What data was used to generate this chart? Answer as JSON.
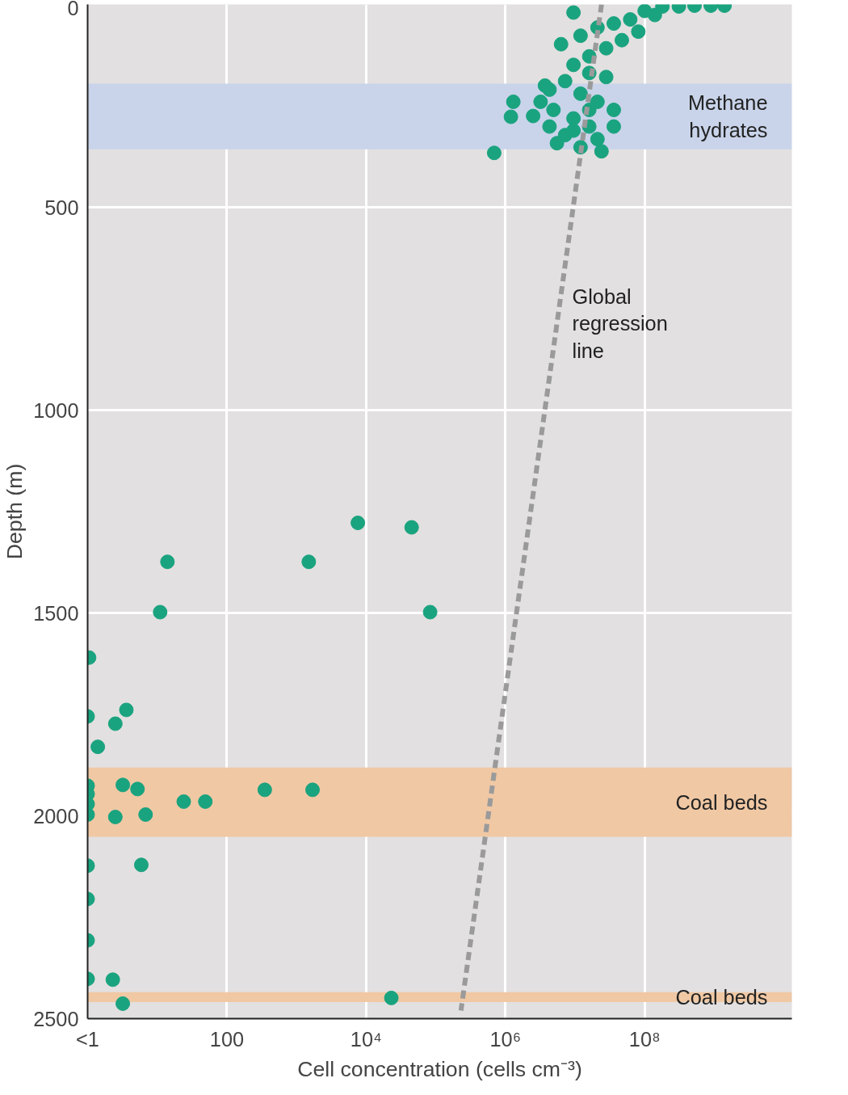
{
  "chart_data": {
    "type": "scatter",
    "xlabel": "Cell concentration (cells cm⁻³)",
    "ylabel": "Depth (m)",
    "log": "x",
    "grid": true,
    "xlim": [
      1,
      13000000000
    ],
    "ylim": [
      2500,
      0
    ],
    "xticks": [
      {
        "value": 1,
        "label": "<1"
      },
      100,
      {
        "value": 10000,
        "label": "10⁴"
      },
      {
        "value": 1000000,
        "label": "10⁶"
      },
      {
        "value": 100000000,
        "label": "10⁸"
      }
    ],
    "yticks": [
      0,
      500,
      1000,
      1500,
      2000,
      2500
    ],
    "series": [
      {
        "color": "#1aa37f",
        "marker": "circle",
        "x": [
          9500000,
          6300000,
          12000000,
          21000000,
          36000000,
          62000000,
          100000000,
          180000000,
          310000000,
          520000000,
          890000000,
          1400000000,
          140000000,
          81000000,
          47000000,
          28000000,
          16000000,
          9500000,
          16000000,
          28000000,
          7200000,
          4300000,
          3200000,
          12000000,
          21000000,
          36000000,
          9500000,
          16000000,
          4300000,
          7200000,
          21000000,
          36000000,
          24000000,
          5500000,
          9500000,
          3700000,
          16000000,
          1300000,
          1200000,
          2500000,
          690000,
          4900000,
          12000000
        ],
        "values": [
          20,
          98,
          77,
          57,
          47,
          37,
          16,
          5,
          5,
          3,
          3,
          3,
          26,
          67,
          88,
          108,
          128,
          149,
          169,
          179,
          189,
          210,
          240,
          220,
          240,
          260,
          281,
          301,
          301,
          322,
          332,
          301,
          362,
          342,
          311,
          200,
          260,
          240,
          277,
          275,
          366,
          260,
          352
        ]
      },
      {
        "color": "#1aa37f",
        "marker": "circle",
        "x": [
          1.05,
          1,
          2.5,
          3.6,
          1.4,
          1,
          1,
          1,
          1,
          3.2,
          5.2,
          2.5,
          6.8,
          24,
          49,
          350,
          1700,
          1,
          5.9,
          1,
          1,
          1,
          2.3,
          3.2,
          23000,
          14,
          11,
          1500,
          7600,
          45000,
          83000
        ],
        "values": [
          1610,
          1755,
          1773,
          1739,
          1830,
          1926,
          1946,
          1971,
          1997,
          1924,
          1934,
          2003,
          1997,
          1965,
          1965,
          1936,
          1936,
          2123,
          2121,
          2205,
          2307,
          2402,
          2404,
          2463,
          2449,
          1374,
          1498,
          1374,
          1278,
          1289,
          1498
        ]
      },
      {
        "type": "line",
        "color": "#9a9a9a",
        "line_style": "dashed",
        "marker": "none",
        "x": [
          24000000,
          230000
        ],
        "values": [
          0,
          2480
        ]
      }
    ],
    "bands": [
      {
        "axis": "y",
        "from": 195,
        "to": 357,
        "label": "Methane hydrates",
        "color": "#c9d4ea"
      },
      {
        "axis": "y",
        "from": 1881,
        "to": 2052,
        "label": "Coal beds",
        "color": "#f0c8a4"
      },
      {
        "axis": "y",
        "from": 2435,
        "to": 2459,
        "label": "Coal beds",
        "color": "#f0c8a4"
      }
    ],
    "annotations": [
      "Global regression line"
    ]
  }
}
